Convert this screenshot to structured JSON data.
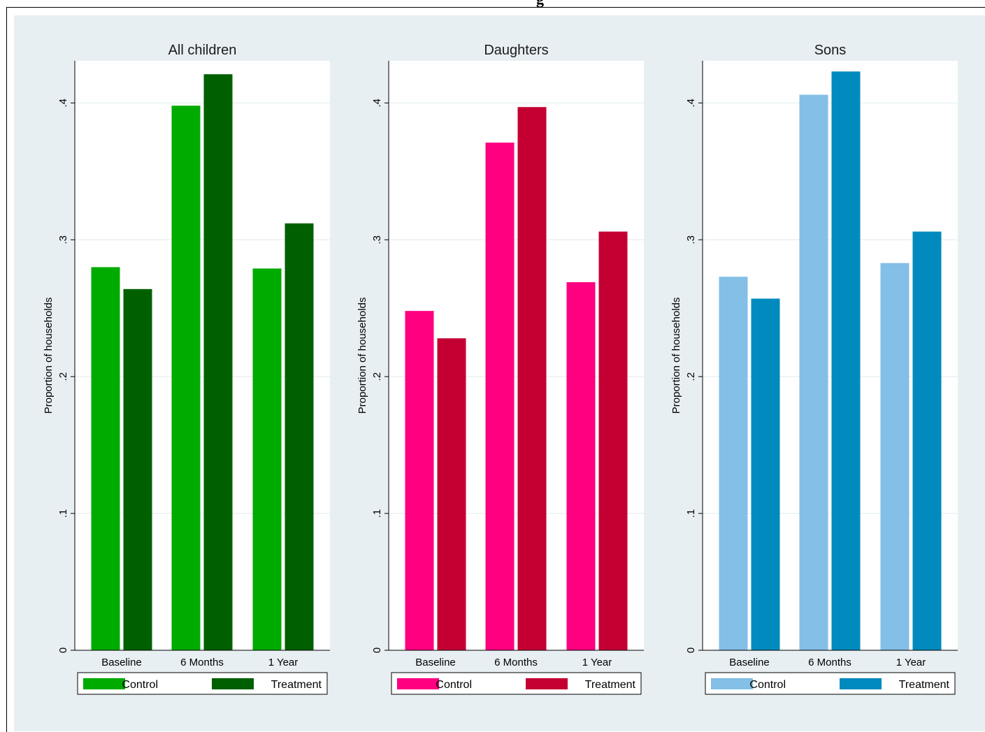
{
  "page": {
    "top_fragment": "g"
  },
  "colors": {
    "background": "#e8eff2",
    "plot_background": "#ffffff",
    "grid": "#eaf1f3",
    "axis": "#000000"
  },
  "chart_data": [
    {
      "type": "bar",
      "title": "All children",
      "ylabel": "Proportion of households",
      "xlabel": "",
      "categories": [
        "Baseline",
        "6 Months",
        "1 Year"
      ],
      "ylim": [
        0,
        0.43
      ],
      "yticks": [
        0,
        0.1,
        0.2,
        0.3,
        0.4
      ],
      "ytick_labels": [
        "0",
        ".1",
        ".2",
        ".3",
        ".4"
      ],
      "grid": true,
      "legend_position": "bottom",
      "series": [
        {
          "name": "Control",
          "color": "#00ab00",
          "values": [
            0.28,
            0.398,
            0.279
          ]
        },
        {
          "name": "Treatment",
          "color": "#006000",
          "values": [
            0.264,
            0.421,
            0.312
          ]
        }
      ]
    },
    {
      "type": "bar",
      "title": "Daughters",
      "ylabel": "Proportion of households",
      "xlabel": "",
      "categories": [
        "Baseline",
        "6 Months",
        "1 Year"
      ],
      "ylim": [
        0,
        0.43
      ],
      "yticks": [
        0,
        0.1,
        0.2,
        0.3,
        0.4
      ],
      "ytick_labels": [
        "0",
        ".1",
        ".2",
        ".3",
        ".4"
      ],
      "grid": true,
      "legend_position": "bottom",
      "series": [
        {
          "name": "Control",
          "color": "#ff0080",
          "values": [
            0.248,
            0.371,
            0.269
          ]
        },
        {
          "name": "Treatment",
          "color": "#c40033",
          "values": [
            0.228,
            0.397,
            0.306
          ]
        }
      ]
    },
    {
      "type": "bar",
      "title": "Sons",
      "ylabel": "Proportion of households",
      "xlabel": "",
      "categories": [
        "Baseline",
        "6 Months",
        "1 Year"
      ],
      "ylim": [
        0,
        0.43
      ],
      "yticks": [
        0,
        0.1,
        0.2,
        0.3,
        0.4
      ],
      "ytick_labels": [
        "0",
        ".1",
        ".2",
        ".3",
        ".4"
      ],
      "grid": true,
      "legend_position": "bottom",
      "series": [
        {
          "name": "Control",
          "color": "#83bfe7",
          "values": [
            0.273,
            0.406,
            0.283
          ]
        },
        {
          "name": "Treatment",
          "color": "#018abd",
          "values": [
            0.257,
            0.423,
            0.306
          ]
        }
      ]
    }
  ]
}
